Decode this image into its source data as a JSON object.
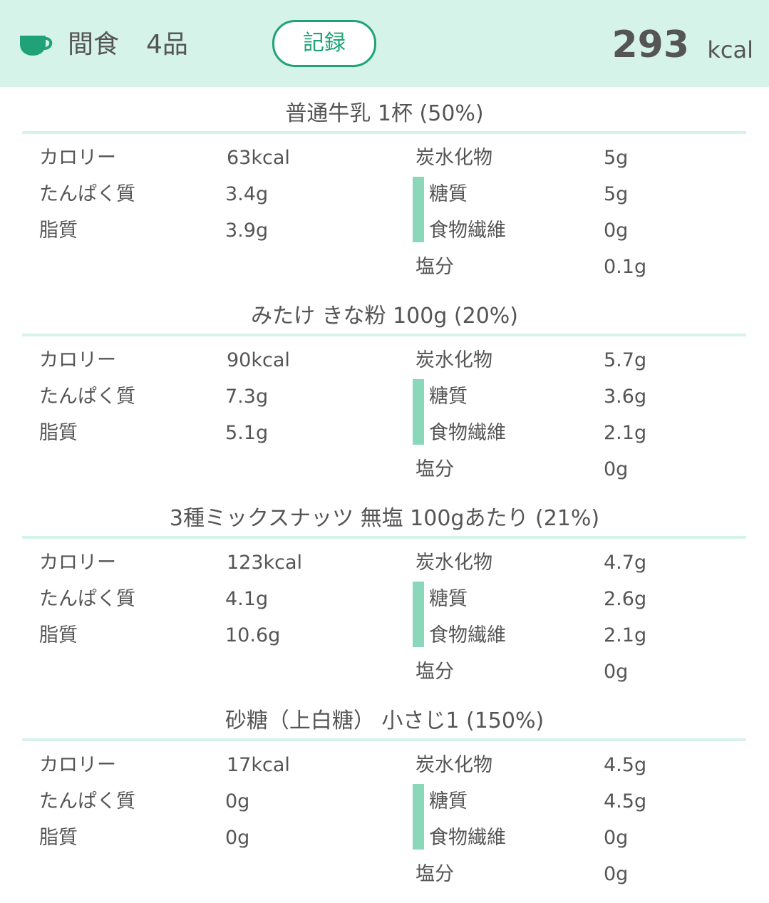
{
  "header": {
    "icon": "teacup-icon",
    "meal_name": "間食",
    "item_count": "4品",
    "record_label": "記録",
    "total_value": "293",
    "total_unit": "kcal",
    "colors": {
      "header_bg": "#d6f3e9",
      "accent": "#1fa278",
      "sub_bar": "#8ad7bb"
    }
  },
  "labels": {
    "calorie": "カロリー",
    "protein": "たんぱく質",
    "fat": "脂質",
    "carbs": "炭水化物",
    "sugar": "糖質",
    "fiber": "食物繊維",
    "salt": "塩分"
  },
  "items": [
    {
      "title": "普通牛乳 1杯 (50%)",
      "calorie": "63kcal",
      "protein": "3.4g",
      "fat": "3.9g",
      "carbs": "5g",
      "sugar": "5g",
      "fiber": "0g",
      "salt": "0.1g"
    },
    {
      "title": "みたけ きな粉 100g (20%)",
      "calorie": "90kcal",
      "protein": "7.3g",
      "fat": "5.1g",
      "carbs": "5.7g",
      "sugar": "3.6g",
      "fiber": "2.1g",
      "salt": "0g"
    },
    {
      "title": "3種ミックスナッツ 無塩 100gあたり (21%)",
      "calorie": "123kcal",
      "protein": "4.1g",
      "fat": "10.6g",
      "carbs": "4.7g",
      "sugar": "2.6g",
      "fiber": "2.1g",
      "salt": "0g"
    },
    {
      "title": "砂糖（上白糖） 小さじ1 (150%)",
      "calorie": "17kcal",
      "protein": "0g",
      "fat": "0g",
      "carbs": "4.5g",
      "sugar": "4.5g",
      "fiber": "0g",
      "salt": "0g"
    }
  ]
}
